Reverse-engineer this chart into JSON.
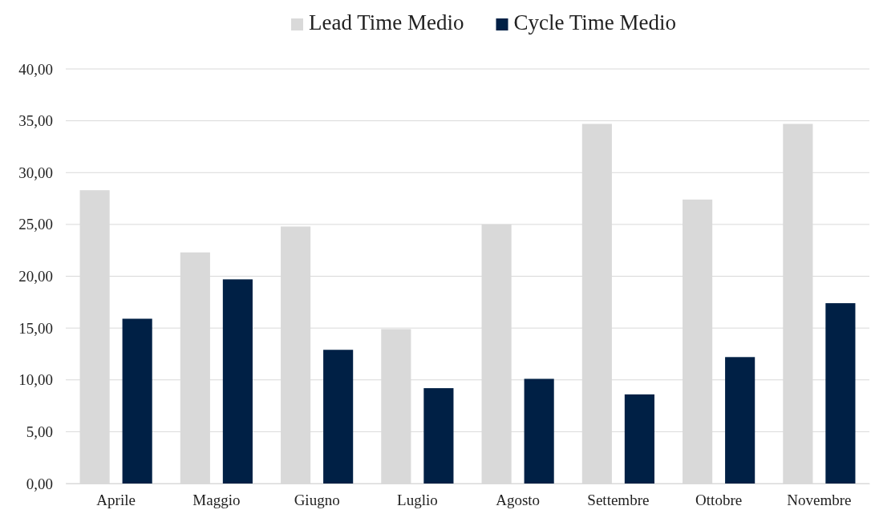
{
  "chart_data": {
    "type": "bar",
    "categories": [
      "Aprile",
      "Maggio",
      "Giugno",
      "Luglio",
      "Agosto",
      "Settembre",
      "Ottobre",
      "Novembre"
    ],
    "series": [
      {
        "name": "Lead Time Medio",
        "color": "#d9d9d9",
        "values": [
          28.3,
          22.3,
          24.8,
          14.9,
          25.0,
          34.7,
          27.4,
          34.7
        ]
      },
      {
        "name": "Cycle Time Medio",
        "color": "#002045",
        "values": [
          15.9,
          19.7,
          12.9,
          9.2,
          10.1,
          8.6,
          12.2,
          17.4
        ]
      }
    ],
    "ylim": [
      0,
      40
    ],
    "yticks": [
      {
        "value": 0,
        "label": "0,00"
      },
      {
        "value": 5,
        "label": "5,00"
      },
      {
        "value": 10,
        "label": "10,00"
      },
      {
        "value": 15,
        "label": "15,00"
      },
      {
        "value": 20,
        "label": "20,00"
      },
      {
        "value": 25,
        "label": "25,00"
      },
      {
        "value": 30,
        "label": "30,00"
      },
      {
        "value": 35,
        "label": "35,00"
      },
      {
        "value": 40,
        "label": "40,00"
      }
    ],
    "grid": "y",
    "legend": "top"
  }
}
